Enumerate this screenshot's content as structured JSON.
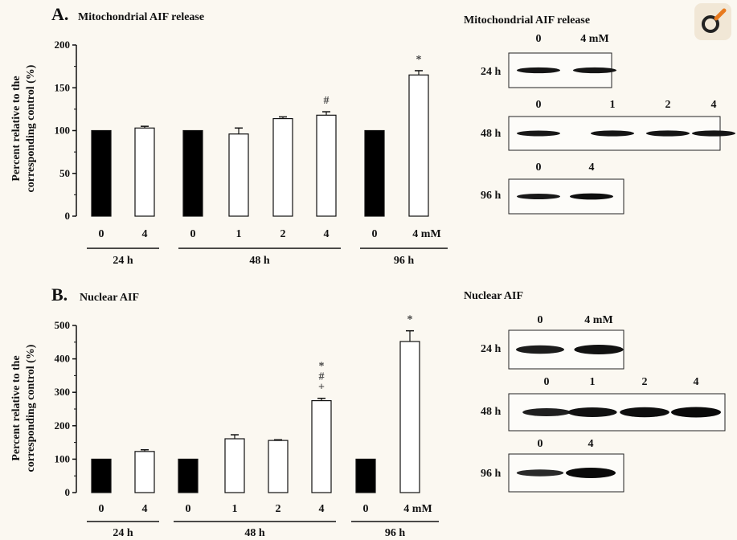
{
  "colors": {
    "control_bar": "#000000",
    "treated_bar": "#ffffff",
    "background": "#fbf8f1",
    "logo_accent": "#e87a1e"
  },
  "logo_icon": "microscope-lens-icon",
  "chart_data": [
    {
      "type": "bar",
      "panel_letter": "A.",
      "title": "Mitochondrial AIF release",
      "ylabel": [
        "Percent relative to the",
        "corresponding control (%)"
      ],
      "ylim": [
        0,
        200
      ],
      "yticks": [
        "0",
        "50",
        "100",
        "150",
        "200"
      ],
      "categories": [
        "0",
        "4",
        "0",
        "1",
        "2",
        "4",
        "0",
        "4 mM"
      ],
      "groups": [
        {
          "label": "24 h",
          "n": 2
        },
        {
          "label": "48 h",
          "n": 4
        },
        {
          "label": "96 h",
          "n": 2
        }
      ],
      "values": [
        100,
        103,
        100,
        96,
        114,
        118,
        100,
        165
      ],
      "errors": [
        0,
        2,
        0,
        7,
        2,
        4,
        0,
        5
      ],
      "control": [
        true,
        false,
        true,
        false,
        false,
        false,
        true,
        false
      ],
      "annotations": [
        "",
        "",
        "",
        "",
        "",
        "#",
        "",
        "*"
      ]
    },
    {
      "type": "bar",
      "panel_letter": "B.",
      "title": "Nuclear AIF",
      "ylabel": [
        "Percent relative to the",
        "corresponding control (%)"
      ],
      "ylim": [
        0,
        500
      ],
      "yticks": [
        "0",
        "100",
        "200",
        "300",
        "400",
        "500"
      ],
      "categories": [
        "0",
        "4",
        "0",
        "1",
        "2",
        "4",
        "0",
        "4 mM"
      ],
      "groups": [
        {
          "label": "24 h",
          "n": 2
        },
        {
          "label": "48 h",
          "n": 4
        },
        {
          "label": "96 h",
          "n": 2
        }
      ],
      "values": [
        100,
        123,
        100,
        161,
        156,
        275,
        100,
        452
      ],
      "errors": [
        0,
        5,
        0,
        12,
        2,
        7,
        0,
        32
      ],
      "control": [
        true,
        false,
        true,
        false,
        false,
        false,
        true,
        false
      ],
      "annotations": [
        "",
        "",
        "",
        "",
        "",
        "*\n#\n+",
        "",
        "*"
      ]
    }
  ],
  "blots": [
    {
      "title": "Mitochondrial AIF release",
      "rows": [
        {
          "time": "24 h",
          "lanes": [
            "0",
            "4 mM"
          ],
          "intensity": [
            0.85,
            0.85
          ]
        },
        {
          "time": "48 h",
          "lanes": [
            "0",
            "1",
            "2",
            "4"
          ],
          "intensity": [
            0.8,
            0.85,
            0.85,
            0.85
          ]
        },
        {
          "time": "96 h",
          "lanes": [
            "0",
            "4"
          ],
          "intensity": [
            0.8,
            0.95
          ]
        }
      ]
    },
    {
      "title": "Nuclear AIF",
      "rows": [
        {
          "time": "24 h",
          "lanes": [
            "0",
            "4 mM"
          ],
          "intensity": [
            0.75,
            0.9
          ]
        },
        {
          "time": "48 h",
          "lanes": [
            "0",
            "1",
            "2",
            "4"
          ],
          "intensity": [
            0.7,
            0.9,
            0.95,
            1.0
          ]
        },
        {
          "time": "96 h",
          "lanes": [
            "0",
            "4"
          ],
          "intensity": [
            0.55,
            1.0
          ]
        }
      ]
    }
  ]
}
